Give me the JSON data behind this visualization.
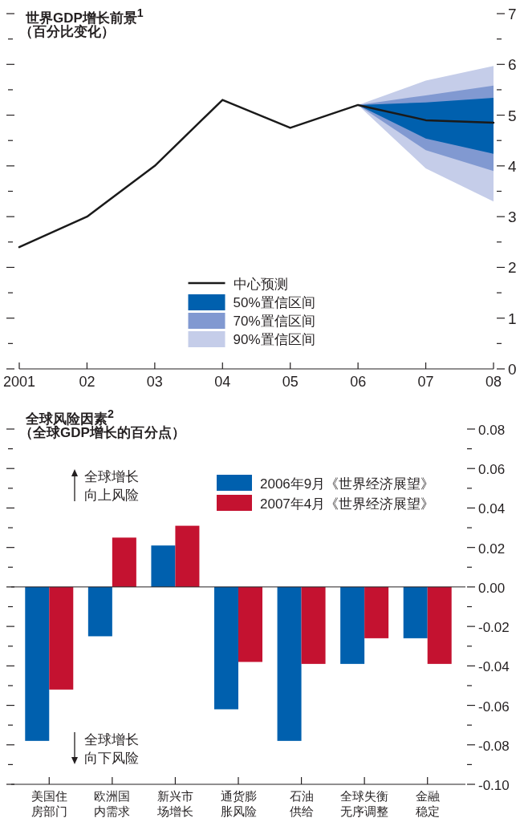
{
  "chart_data": [
    {
      "type": "line",
      "title": "世界GDP增长前景$^{1}$",
      "subtitle": "（百分比变化）",
      "xlim": [
        2001,
        2008
      ],
      "xticks": [
        {
          "value": 2001,
          "label": "2001"
        },
        {
          "value": 2002,
          "label": "02"
        },
        {
          "value": 2003,
          "label": "03"
        },
        {
          "value": 2004,
          "label": "04"
        },
        {
          "value": 2005,
          "label": "05"
        },
        {
          "value": 2006,
          "label": "06"
        },
        {
          "value": 2007,
          "label": "07"
        },
        {
          "value": 2008,
          "label": "08"
        }
      ],
      "ylim": [
        0,
        7
      ],
      "yticks": [
        0,
        {
          "value": 0.5,
          "label": null
        },
        1,
        {
          "value": 1.5,
          "label": null
        },
        2,
        {
          "value": 2.5,
          "label": null
        },
        3,
        {
          "value": 3.5,
          "label": null
        },
        4,
        {
          "value": 4.5,
          "label": null
        },
        5,
        {
          "value": 5.5,
          "label": null
        },
        6,
        {
          "value": 6.5,
          "label": null
        },
        7
      ],
      "grid": false,
      "legend": "bottom",
      "series": [
        {
          "name": "中心预测",
          "type": "line",
          "color": "#1a1a1a",
          "x": [
            2001,
            2002,
            2003,
            2004,
            2005,
            2006,
            2007,
            2008
          ],
          "values": [
            2.4,
            3.0,
            4.0,
            5.3,
            4.75,
            5.2,
            4.9,
            4.85
          ]
        },
        {
          "name": "50%置信区间",
          "type": "area",
          "color": "#0060ae",
          "x": [
            2006,
            2007,
            2008
          ],
          "values": [
            null,
            null,
            null
          ],
          "lower": [
            5.2,
            4.54,
            4.24
          ],
          "upper": [
            5.2,
            5.25,
            5.34
          ]
        },
        {
          "name": "70%置信区间",
          "type": "area",
          "color": "#8199d1",
          "x": [
            2006,
            2007,
            2008
          ],
          "values": [
            null,
            null,
            null
          ],
          "lower": [
            5.2,
            4.31,
            3.9
          ],
          "upper": [
            5.2,
            5.39,
            5.58
          ]
        },
        {
          "name": "90%置信区间",
          "type": "area",
          "color": "#c5cde9",
          "x": [
            2006,
            2007,
            2008
          ],
          "values": [
            null,
            null,
            null
          ],
          "lower": [
            5.2,
            3.95,
            3.3
          ],
          "upper": [
            5.2,
            5.68,
            5.97
          ]
        }
      ]
    },
    {
      "type": "bar",
      "title": "全球风险因素$^{2}$",
      "subtitle": "（全球GDP增长的百分点）",
      "categories": [
        "美国住房部门",
        "欧洲国内需求",
        "新兴市场增长",
        "通货膨胀风险",
        "石油供给",
        "全球失衡无序调整",
        "金融稳定"
      ],
      "ylim": [
        -0.1,
        0.08
      ],
      "yticks": [
        {
          "value": -0.1,
          "label": "-0.10"
        },
        {
          "value": -0.09,
          "label": null
        },
        {
          "value": -0.08,
          "label": "-0.08"
        },
        {
          "value": -0.07,
          "label": null
        },
        {
          "value": -0.06,
          "label": "-0.06"
        },
        {
          "value": -0.05,
          "label": null
        },
        {
          "value": -0.04,
          "label": "-0.04"
        },
        {
          "value": -0.03,
          "label": null
        },
        {
          "value": -0.02,
          "label": "-0.02"
        },
        {
          "value": -0.01,
          "label": null
        },
        {
          "value": 0,
          "label": "0.00"
        },
        {
          "value": 0.01,
          "label": null
        },
        {
          "value": 0.02,
          "label": "0.02"
        },
        {
          "value": 0.03,
          "label": null
        },
        {
          "value": 0.04,
          "label": "0.04"
        },
        {
          "value": 0.05,
          "label": null
        },
        {
          "value": 0.06,
          "label": "0.06"
        },
        {
          "value": 0.07,
          "label": null
        },
        {
          "value": 0.08,
          "label": "0.08"
        }
      ],
      "legend": "top right",
      "annotations": [
        "全球增长向上风险",
        "全球增长向下风险"
      ],
      "series": [
        {
          "name": "2006年9月《世界经济展望》",
          "color": "#0060ae",
          "values": [
            -0.078,
            -0.025,
            0.021,
            -0.062,
            -0.078,
            -0.039,
            -0.026
          ]
        },
        {
          "name": "2007年4月《世界经济展望》",
          "color": "#c41230",
          "values": [
            -0.052,
            0.025,
            0.031,
            -0.038,
            -0.039,
            -0.026,
            -0.039
          ]
        }
      ]
    }
  ]
}
